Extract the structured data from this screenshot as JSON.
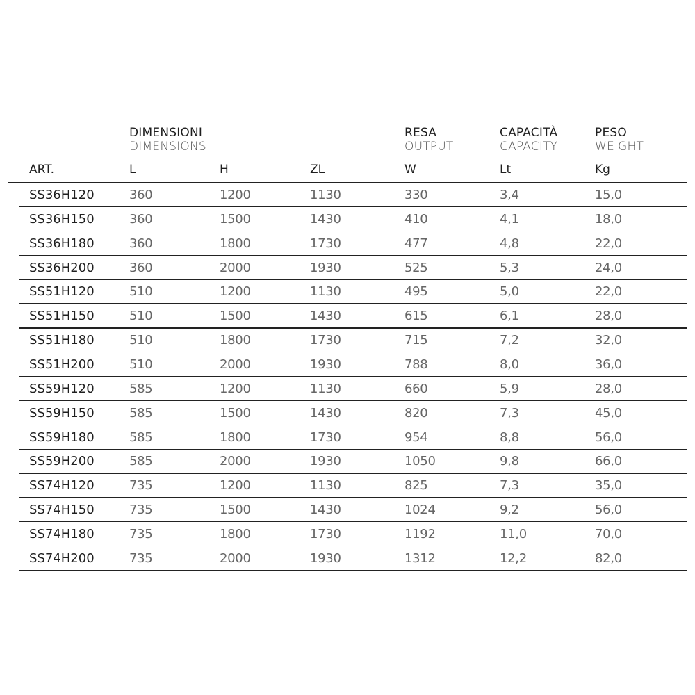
{
  "groups": [
    {
      "it": "DIMENSIONI",
      "en": "DIMENSIONS"
    },
    {
      "it": "RESA",
      "en": "OUTPUT"
    },
    {
      "it": "CAPACITÀ",
      "en": "CAPACITY"
    },
    {
      "it": "PESO",
      "en": "WEIGHT"
    }
  ],
  "columns": [
    "ART.",
    "L",
    "H",
    "ZL",
    "W",
    "Lt",
    "Kg"
  ],
  "rows": [
    [
      "SS36H120",
      "360",
      "1200",
      "1130",
      "330",
      "3,4",
      "15,0"
    ],
    [
      "SS36H150",
      "360",
      "1500",
      "1430",
      "410",
      "4,1",
      "18,0"
    ],
    [
      "SS36H180",
      "360",
      "1800",
      "1730",
      "477",
      "4,8",
      "22,0"
    ],
    [
      "SS36H200",
      "360",
      "2000",
      "1930",
      "525",
      "5,3",
      "24,0"
    ],
    [
      "SS51H120",
      "510",
      "1200",
      "1130",
      "495",
      "5,0",
      "22,0"
    ],
    [
      "SS51H150",
      "510",
      "1500",
      "1430",
      "615",
      "6,1",
      "28,0"
    ],
    [
      "SS51H180",
      "510",
      "1800",
      "1730",
      "715",
      "7,2",
      "32,0"
    ],
    [
      "SS51H200",
      "510",
      "2000",
      "1930",
      "788",
      "8,0",
      "36,0"
    ],
    [
      "SS59H120",
      "585",
      "1200",
      "1130",
      "660",
      "5,9",
      "28,0"
    ],
    [
      "SS59H150",
      "585",
      "1500",
      "1430",
      "820",
      "7,3",
      "45,0"
    ],
    [
      "SS59H180",
      "585",
      "1800",
      "1730",
      "954",
      "8,8",
      "56,0"
    ],
    [
      "SS59H200",
      "585",
      "2000",
      "1930",
      "1050",
      "9,8",
      "66,0"
    ],
    [
      "SS74H120",
      "735",
      "1200",
      "1130",
      "825",
      "7,3",
      "35,0"
    ],
    [
      "SS74H150",
      "735",
      "1500",
      "1430",
      "1024",
      "9,2",
      "56,0"
    ],
    [
      "SS74H180",
      "735",
      "1800",
      "1730",
      "1192",
      "11,0",
      "70,0"
    ],
    [
      "SS74H200",
      "735",
      "2000",
      "1930",
      "1312",
      "12,2",
      "82,0"
    ]
  ]
}
